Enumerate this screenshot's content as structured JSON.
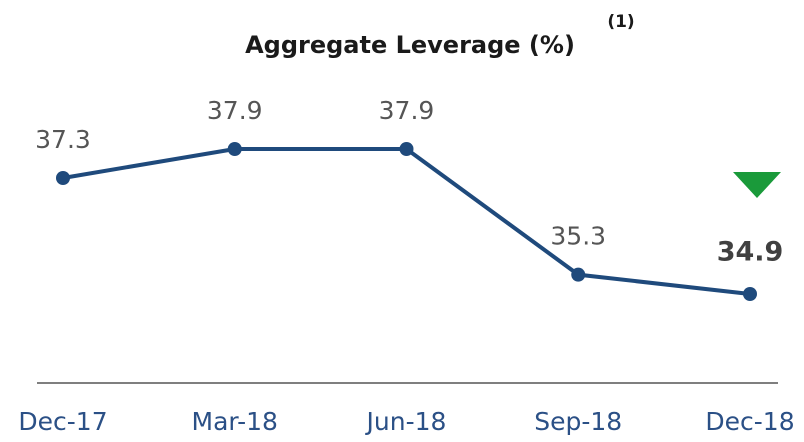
{
  "chart_data": {
    "type": "line",
    "title": "Aggregate Leverage (%)",
    "title_note": "(1)",
    "categories": [
      "Dec-17",
      "Mar-18",
      "Jun-18",
      "Sep-18",
      "Dec-18"
    ],
    "series": [
      {
        "name": "Aggregate Leverage",
        "color": "#1f4a7c",
        "values": [
          37.3,
          37.9,
          37.9,
          35.3,
          34.9
        ]
      }
    ]
  }
}
